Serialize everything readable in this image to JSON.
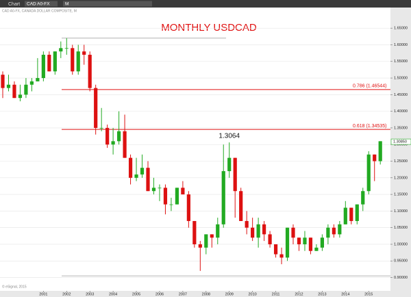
{
  "toolbar": {
    "app": "Chart",
    "symbol": "CAD A0-FX",
    "interval": "M"
  },
  "info": "CAD A0-FX, CANADA DOLLAR COMPOSITE, M",
  "footer": "© eSignal, 2015",
  "chart_data": {
    "type": "candlestick",
    "title": "MONTHLY USDCAD",
    "categories": [
      null,
      null,
      null,
      null,
      null,
      null,
      null,
      "2001",
      null,
      null,
      null,
      "2002",
      null,
      null,
      null,
      "2003",
      null,
      null,
      null,
      "2004",
      null,
      null,
      null,
      "2005",
      null,
      null,
      null,
      "2006",
      null,
      null,
      null,
      "2007",
      null,
      null,
      null,
      "2008",
      null,
      null,
      null,
      "2009",
      null,
      null,
      null,
      "2010",
      null,
      null,
      null,
      "2011",
      null,
      null,
      null,
      "2012",
      null,
      null,
      null,
      "2013",
      null,
      null,
      null,
      "2014",
      null,
      null,
      null,
      "2015",
      null,
      null
    ],
    "open": [
      1.51,
      1.47,
      1.48,
      1.44,
      1.45,
      1.48,
      1.49,
      1.5,
      1.57,
      1.52,
      1.58,
      1.59,
      1.59,
      1.52,
      1.58,
      1.57,
      1.47,
      1.35,
      1.35,
      1.3,
      1.31,
      1.34,
      1.26,
      1.2,
      1.21,
      1.23,
      1.16,
      1.17,
      1.17,
      1.12,
      1.12,
      1.17,
      1.15,
      1.07,
      1.0,
      0.99,
      1.03,
      1.02,
      1.06,
      1.22,
      1.26,
      1.16,
      1.07,
      1.05,
      1.02,
      1.06,
      1.03,
      1.0,
      0.97,
      0.96,
      1.05,
      1.02,
      1.0,
      1.02,
      0.98,
      0.99,
      1.02,
      1.05,
      1.03,
      1.06,
      1.11,
      1.07,
      1.12,
      1.16,
      1.27,
      1.25
    ],
    "high": [
      1.52,
      1.51,
      1.49,
      1.48,
      1.5,
      1.5,
      1.56,
      1.58,
      1.58,
      1.58,
      1.61,
      1.62,
      1.6,
      1.6,
      1.6,
      1.58,
      1.48,
      1.41,
      1.36,
      1.35,
      1.4,
      1.39,
      1.27,
      1.26,
      1.27,
      1.25,
      1.2,
      1.18,
      1.18,
      1.14,
      1.17,
      1.19,
      1.16,
      1.07,
      1.01,
      1.03,
      1.03,
      1.08,
      1.3,
      1.3064,
      1.26,
      1.17,
      1.1,
      1.08,
      1.08,
      1.07,
      1.04,
      1.0,
      0.99,
      1.05,
      1.06,
      1.02,
      1.04,
      1.02,
      1.0,
      1.03,
      1.06,
      1.06,
      1.07,
      1.13,
      1.11,
      1.12,
      1.17,
      1.28,
      1.27,
      1.31
    ],
    "low": [
      1.44,
      1.46,
      1.44,
      1.43,
      1.44,
      1.46,
      1.49,
      1.49,
      1.52,
      1.51,
      1.56,
      1.57,
      1.51,
      1.51,
      1.54,
      1.46,
      1.33,
      1.34,
      1.29,
      1.27,
      1.3,
      1.26,
      1.18,
      1.19,
      1.2,
      1.16,
      1.15,
      1.13,
      1.09,
      1.1,
      1.12,
      1.15,
      1.05,
      0.99,
      0.92,
      0.97,
      0.99,
      1.0,
      1.05,
      1.2,
      1.08,
      1.07,
      1.03,
      1.01,
      0.99,
      1.01,
      0.99,
      0.96,
      0.94,
      0.95,
      1.0,
      0.98,
      0.98,
      0.97,
      0.98,
      0.98,
      1.0,
      1.02,
      1.02,
      1.06,
      1.06,
      1.06,
      1.1,
      1.15,
      1.19,
      1.24
    ],
    "close": [
      1.47,
      1.48,
      1.44,
      1.45,
      1.48,
      1.49,
      1.5,
      1.57,
      1.52,
      1.58,
      1.59,
      1.59,
      1.52,
      1.58,
      1.57,
      1.47,
      1.35,
      1.35,
      1.3,
      1.31,
      1.34,
      1.26,
      1.2,
      1.21,
      1.23,
      1.16,
      1.17,
      1.17,
      1.12,
      1.12,
      1.17,
      1.15,
      1.07,
      1.0,
      0.99,
      1.03,
      1.02,
      1.06,
      1.22,
      1.26,
      1.16,
      1.07,
      1.05,
      1.02,
      1.06,
      1.03,
      1.0,
      0.97,
      0.96,
      1.05,
      1.02,
      1.0,
      1.02,
      0.98,
      0.99,
      1.02,
      1.05,
      1.03,
      1.06,
      1.11,
      1.07,
      1.12,
      1.16,
      1.27,
      1.25,
      1.31
    ],
    "up_color": "#22aa22",
    "down_color": "#dd1111",
    "ylim": [
      0.86,
      1.71
    ],
    "yticks": [
      {
        "value": 0.9,
        "label": "0.90000"
      },
      {
        "value": 0.95,
        "label": "0.95000"
      },
      {
        "value": 1.0,
        "label": "1.00000"
      },
      {
        "value": 1.05,
        "label": "1.05000"
      },
      {
        "value": 1.1,
        "label": "1.10000"
      },
      {
        "value": 1.15,
        "label": "1.15000"
      },
      {
        "value": 1.2,
        "label": "1.20000"
      },
      {
        "value": 1.25,
        "label": "1.25000"
      },
      {
        "value": 1.3,
        "label": "1.30000"
      },
      {
        "value": 1.35,
        "label": "1.35000"
      },
      {
        "value": 1.4,
        "label": "1.40000"
      },
      {
        "value": 1.45,
        "label": "1.45000"
      },
      {
        "value": 1.5,
        "label": "1.50000"
      },
      {
        "value": 1.55,
        "label": "1.55000"
      },
      {
        "value": 1.6,
        "label": "1.60000"
      },
      {
        "value": 1.65,
        "label": "1.65000"
      }
    ],
    "grid": true,
    "levels": [
      {
        "value": 1.46544,
        "label": "0.786 (1.46544)",
        "color": "#e01010"
      },
      {
        "value": 1.34535,
        "label": "0.618 (1.34535)",
        "color": "#e01010"
      },
      {
        "value": 1.62,
        "color": "#999999"
      },
      {
        "value": 0.905,
        "color": "#999999"
      }
    ],
    "annotation": {
      "value": 1.3064,
      "label": "1.3064"
    },
    "last": {
      "value": 1.3085,
      "label": "1.30850"
    }
  }
}
